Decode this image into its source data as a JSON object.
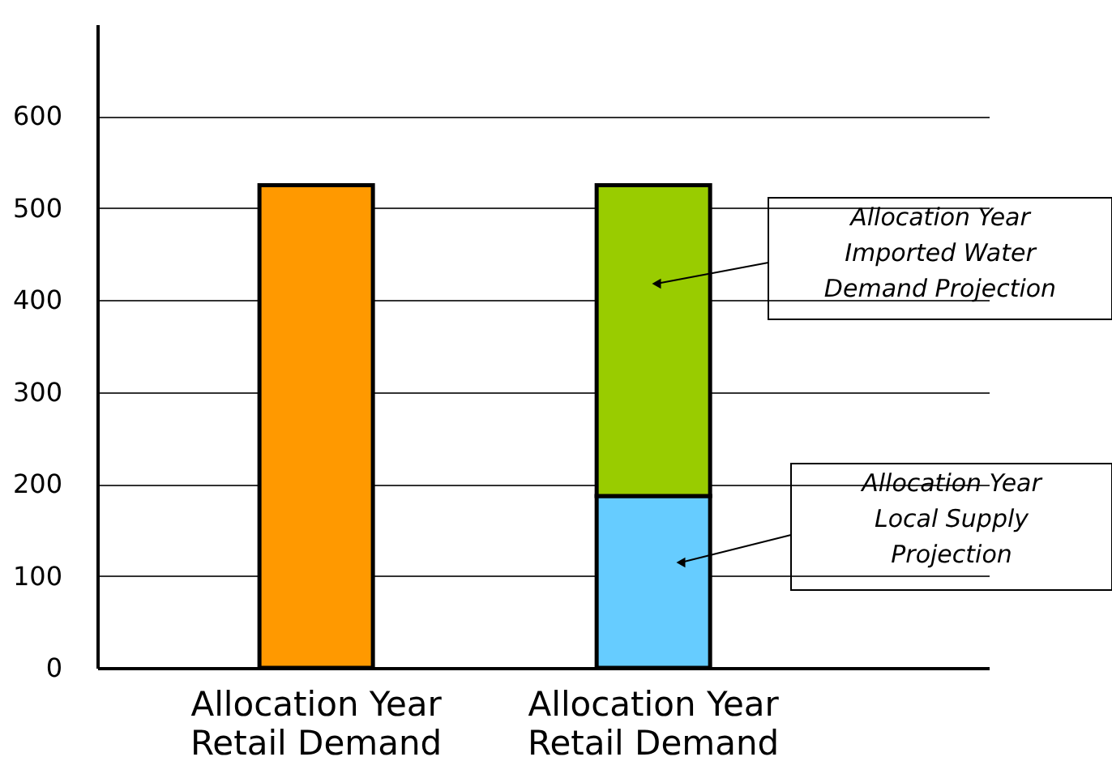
{
  "chart_data": {
    "type": "bar",
    "stacked": true,
    "categories": [
      "Allocation Year\nRetail Demand",
      "Allocation Year\nRetail Demand"
    ],
    "series": [
      {
        "color": "#ff9900",
        "values": [
          525,
          null
        ]
      },
      {
        "color": "#66ccff",
        "values": [
          null,
          187
        ]
      },
      {
        "color": "#99cc00",
        "values": [
          null,
          338
        ]
      }
    ],
    "ylim": [
      0,
      700
    ],
    "yticks": [
      0,
      100,
      200,
      300,
      400,
      500,
      600
    ],
    "grid": "y",
    "annotations": [
      "Allocation Year\nImported Water\nDemand Projection",
      "Allocation Year\nLocal Supply\nProjection"
    ]
  }
}
